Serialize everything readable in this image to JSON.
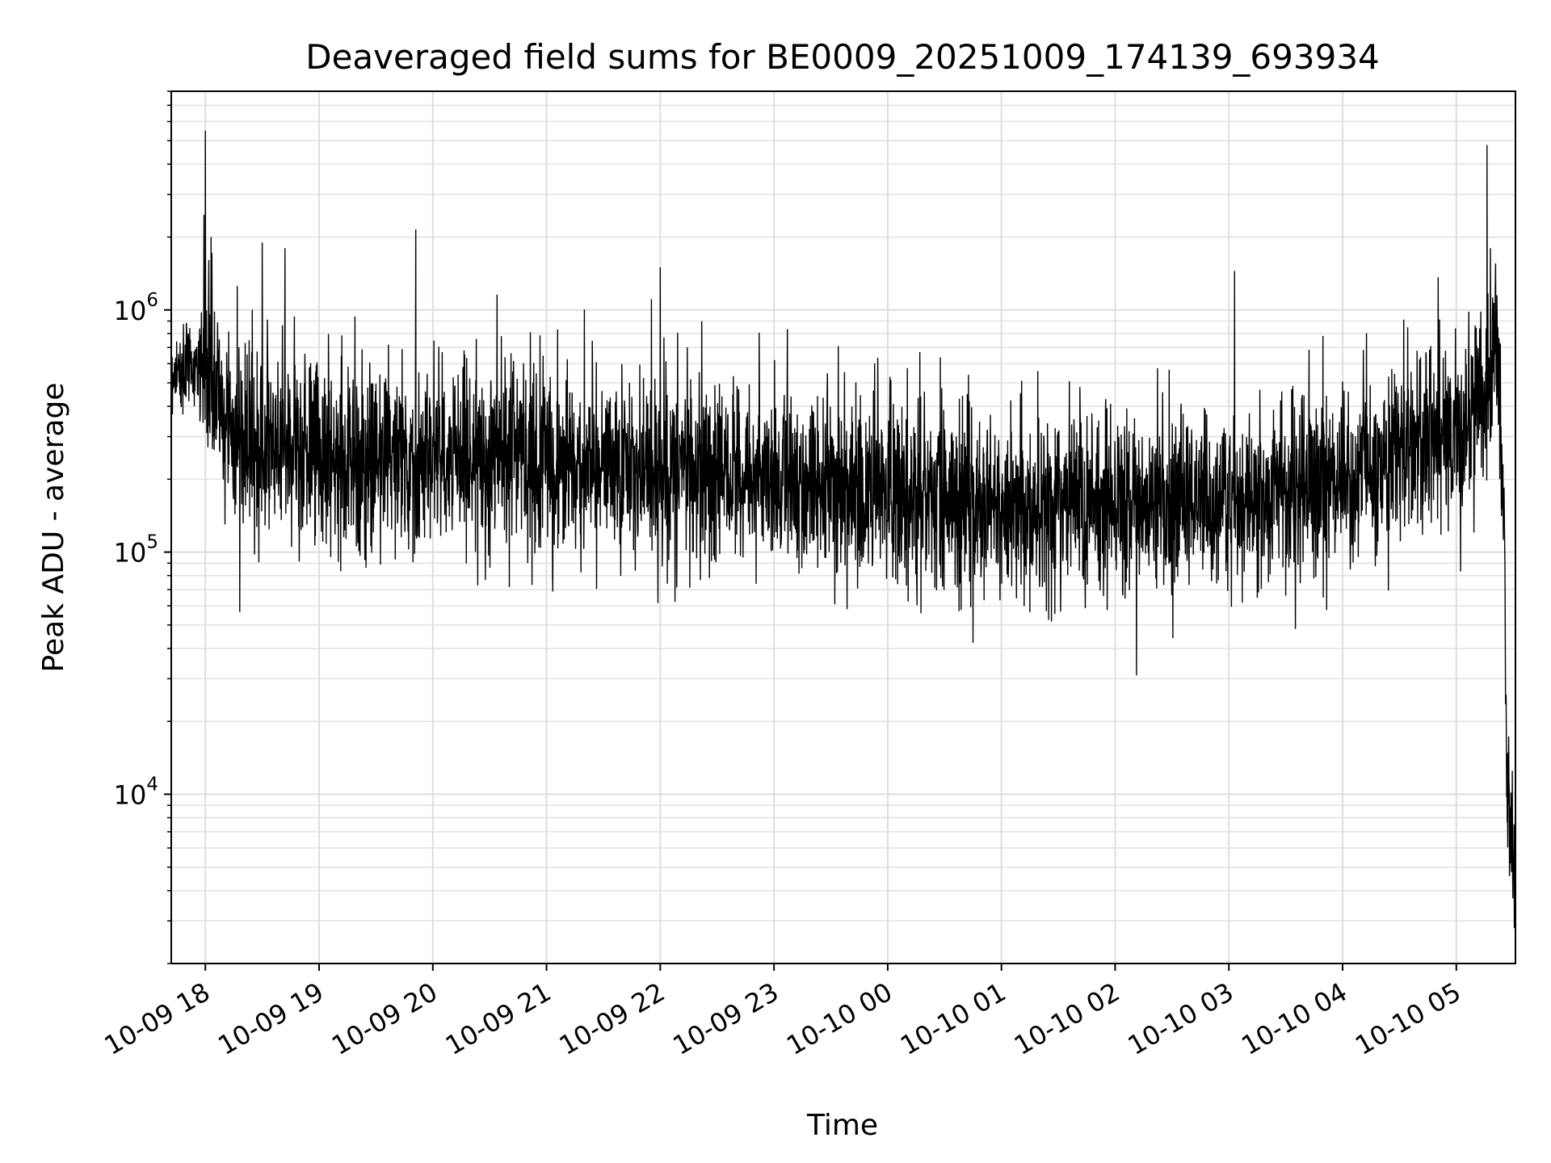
{
  "chart_data": {
    "type": "line",
    "title": "Deaveraged field sums for BE0009_20251009_174139_693934",
    "xlabel": "Time",
    "ylabel": "Peak ADU - average",
    "yscale": "log",
    "ylim": [
      2000,
      8000000
    ],
    "xlim_hours": [
      17.7,
      29.52
    ],
    "grid": true,
    "grid_minor": true,
    "line_color": "#000000",
    "x_ticks": [
      {
        "hour": 18,
        "label": "10-09 18"
      },
      {
        "hour": 19,
        "label": "10-09 19"
      },
      {
        "hour": 20,
        "label": "10-09 20"
      },
      {
        "hour": 21,
        "label": "10-09 21"
      },
      {
        "hour": 22,
        "label": "10-09 22"
      },
      {
        "hour": 23,
        "label": "10-09 23"
      },
      {
        "hour": 24,
        "label": "10-10 00"
      },
      {
        "hour": 25,
        "label": "10-10 01"
      },
      {
        "hour": 26,
        "label": "10-10 02"
      },
      {
        "hour": 27,
        "label": "10-10 03"
      },
      {
        "hour": 28,
        "label": "10-10 04"
      },
      {
        "hour": 29,
        "label": "10-10 05"
      }
    ],
    "y_ticks": [
      {
        "value": 10000,
        "base": "10",
        "exp": "4"
      },
      {
        "value": 100000,
        "base": "10",
        "exp": "5"
      },
      {
        "value": 1000000,
        "base": "10",
        "exp": "6"
      }
    ],
    "series": [
      {
        "name": "Peak ADU - average",
        "generated": true,
        "samples_per_hour": 400,
        "baseline_anchors": [
          {
            "hour": 17.7,
            "value": 550000
          },
          {
            "hour": 18.0,
            "value": 600000
          },
          {
            "hour": 18.2,
            "value": 300000
          },
          {
            "hour": 19.0,
            "value": 250000
          },
          {
            "hour": 21.0,
            "value": 240000
          },
          {
            "hour": 23.0,
            "value": 200000
          },
          {
            "hour": 25.0,
            "value": 150000
          },
          {
            "hour": 27.0,
            "value": 160000
          },
          {
            "hour": 28.0,
            "value": 200000
          },
          {
            "hour": 29.0,
            "value": 300000
          },
          {
            "hour": 29.25,
            "value": 400000
          },
          {
            "hour": 29.33,
            "value": 700000
          },
          {
            "hour": 29.38,
            "value": 500000
          },
          {
            "hour": 29.42,
            "value": 150000
          },
          {
            "hour": 29.44,
            "value": 15000
          },
          {
            "hour": 29.47,
            "value": 7000
          },
          {
            "hour": 29.52,
            "value": 5000
          }
        ],
        "spikes": [
          {
            "hour": 18.0,
            "value": 5500000
          },
          {
            "hour": 18.05,
            "value": 2000000
          },
          {
            "hour": 18.5,
            "value": 1900000
          },
          {
            "hour": 18.7,
            "value": 1800000
          },
          {
            "hour": 19.85,
            "value": 2150000
          },
          {
            "hour": 22.0,
            "value": 1500000
          },
          {
            "hour": 29.27,
            "value": 4800000
          },
          {
            "hour": 29.3,
            "value": 1800000
          },
          {
            "hour": 27.05,
            "value": 1450000
          },
          {
            "hour": 29.51,
            "value": 2800
          }
        ]
      }
    ]
  }
}
